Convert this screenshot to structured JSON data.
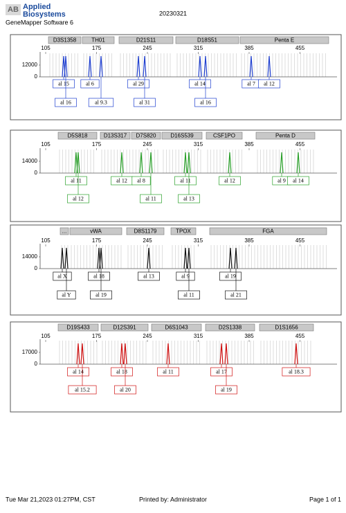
{
  "header": {
    "logo_mark": "AB",
    "brand_line1": "Applied",
    "brand_line2": "Biosystems",
    "software": "GeneMapper Software 6",
    "run_id": "20230321"
  },
  "panels": [
    {
      "markers": [
        "D3S1358",
        "TH01",
        "D21S11",
        "D18S51",
        "Penta E"
      ],
      "x_ticks": [
        105,
        175,
        245,
        315,
        385,
        455
      ],
      "y_ticks": [
        0,
        12000
      ],
      "alleles": [
        {
          "top": "al 15",
          "bottom": "al 16"
        },
        {
          "top": "al 6",
          "bottom": "al 9.3"
        },
        {
          "top": "al 29",
          "bottom": "al 31"
        },
        {
          "top": "al 14",
          "bottom": "al 16"
        },
        {
          "top": "al 7"
        },
        {
          "top": "al 12"
        }
      ]
    },
    {
      "markers": [
        "D5S818",
        "D13S317",
        "D7S820",
        "D16S539",
        "CSF1PO",
        "Penta D"
      ],
      "x_ticks": [
        105,
        175,
        245,
        315,
        385,
        455
      ],
      "y_ticks": [
        0,
        14000
      ],
      "alleles": [
        {
          "top": "al 11",
          "bottom": "al 12"
        },
        {
          "top": "al 12"
        },
        {
          "top": "al 8",
          "bottom": "al 11"
        },
        {
          "top": "al 11",
          "bottom": "al 13"
        },
        {
          "top": "al 12"
        },
        {
          "top": "al 9"
        },
        {
          "top": "al 14"
        }
      ]
    },
    {
      "markers": [
        "...",
        "vWA",
        "D8S1179",
        "TPOX",
        "FGA"
      ],
      "x_ticks": [
        105,
        175,
        245,
        315,
        385,
        455
      ],
      "y_ticks": [
        0,
        14000
      ],
      "alleles": [
        {
          "top": "al X",
          "bottom": "al Y"
        },
        {
          "top": "al 18",
          "bottom": "al 19"
        },
        {
          "top": "al 13"
        },
        {
          "top": "al 9",
          "bottom": "al 11"
        },
        {
          "top": "al 19",
          "bottom": "al 21"
        }
      ]
    },
    {
      "markers": [
        "D19S433",
        "D12S391",
        "D6S1043",
        "D2S1338",
        "D1S1656"
      ],
      "x_ticks": [
        105,
        175,
        245,
        315,
        385,
        455
      ],
      "y_ticks": [
        0,
        17000
      ],
      "alleles": [
        {
          "top": "al 14",
          "bottom": "al 15.2"
        },
        {
          "top": "al 18",
          "bottom": "al 20"
        },
        {
          "top": "al 11"
        },
        {
          "top": "al 17",
          "bottom": "al 19"
        },
        {
          "top": "al 18.3"
        }
      ]
    }
  ],
  "footer": {
    "date": "Tue Mar 21,2023 01:27PM, CST",
    "printed_by": "Printed by: Administrator",
    "page": "Page 1 of 1"
  }
}
